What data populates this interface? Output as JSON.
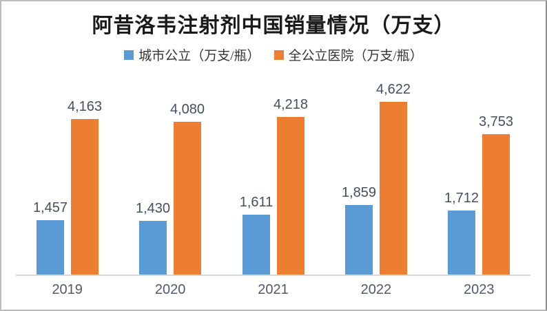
{
  "title": "阿昔洛韦注射剂中国销量情况（万支）",
  "legend": {
    "items": [
      {
        "label": "城市公立（万支/瓶）",
        "color": "#5B9BD5"
      },
      {
        "label": "全公立医院（万支/瓶）",
        "color": "#ED7D31"
      }
    ],
    "position": "top"
  },
  "chart_data": {
    "type": "bar",
    "title": "阿昔洛韦注射剂中国销量情况（万支）",
    "categories": [
      "2019",
      "2020",
      "2021",
      "2022",
      "2023"
    ],
    "series": [
      {
        "name": "城市公立（万支/瓶）",
        "color": "#5B9BD5",
        "values": [
          1457,
          1430,
          1611,
          1859,
          1712
        ]
      },
      {
        "name": "全公立医院（万支/瓶）",
        "color": "#ED7D31",
        "values": [
          4163,
          4080,
          4218,
          4622,
          3753
        ]
      }
    ],
    "data_labels_shown": true,
    "data_label_format": "#,##0",
    "xlabel": "",
    "ylabel": "",
    "ylim": [
      0,
      5000
    ],
    "gridlines": false,
    "y_axis_shown": false,
    "legend_position": "top",
    "colors": {
      "axis_line": "#D9D9D9",
      "data_label_text": "#44505e",
      "axis_label_text": "#50596a",
      "title_text": "#1a1a1a",
      "background": "#ffffff",
      "frame_border": "#bdbdbd"
    }
  }
}
